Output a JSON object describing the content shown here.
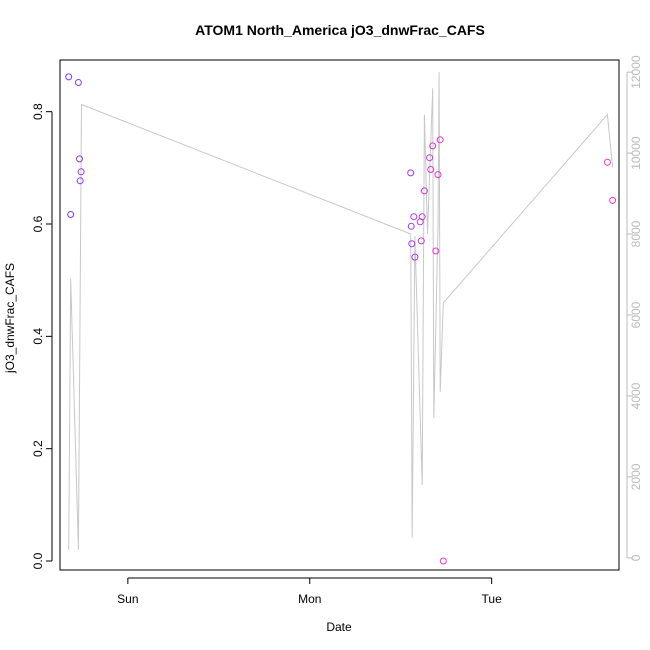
{
  "chart_data": {
    "type": "scatter",
    "title": "ATOM1 North_America jO3_dnwFrac_CAFS",
    "xlabel": "Date",
    "ylabel": "jO3_dnwFrac_CAFS",
    "x_ticks": [
      {
        "x": 0.0,
        "label": "Sun"
      },
      {
        "x": 1.0,
        "label": "Mon"
      },
      {
        "x": 2.0,
        "label": "Tue"
      }
    ],
    "x_unit": "days after Sun 00:00",
    "xlim": [
      -0.373,
      2.7
    ],
    "ylim": [
      -0.016,
      0.892
    ],
    "y_ticks": [
      0.0,
      0.2,
      0.4,
      0.6,
      0.8
    ],
    "y2lim": [
      -300,
      12300
    ],
    "y2_ticks": [
      0,
      2000,
      4000,
      6000,
      8000,
      10000,
      12000
    ],
    "grid": false,
    "series": [
      {
        "kind": "points",
        "color_start": "#7b3ff2",
        "color_end": "#ff33cc",
        "points": [
          {
            "x": -0.325,
            "y": 0.862
          },
          {
            "x": -0.314,
            "y": 0.617
          },
          {
            "x": -0.272,
            "y": 0.852
          },
          {
            "x": -0.266,
            "y": 0.716
          },
          {
            "x": -0.262,
            "y": 0.677
          },
          {
            "x": -0.257,
            "y": 0.693
          },
          {
            "x": 1.555,
            "y": 0.691
          },
          {
            "x": 1.558,
            "y": 0.596
          },
          {
            "x": 1.561,
            "y": 0.565
          },
          {
            "x": 1.572,
            "y": 0.613
          },
          {
            "x": 1.578,
            "y": 0.541
          },
          {
            "x": 1.607,
            "y": 0.604
          },
          {
            "x": 1.613,
            "y": 0.57
          },
          {
            "x": 1.618,
            "y": 0.613
          },
          {
            "x": 1.63,
            "y": 0.659
          },
          {
            "x": 1.659,
            "y": 0.718
          },
          {
            "x": 1.665,
            "y": 0.697
          },
          {
            "x": 1.676,
            "y": 0.739
          },
          {
            "x": 1.693,
            "y": 0.552
          },
          {
            "x": 1.705,
            "y": 0.688
          },
          {
            "x": 1.717,
            "y": 0.75
          },
          {
            "x": 1.734,
            "y": 0.0
          },
          {
            "x": 2.636,
            "y": 0.71
          },
          {
            "x": 2.665,
            "y": 0.642
          }
        ]
      },
      {
        "kind": "line",
        "axis": "right",
        "color": "#c8c8c8",
        "points": [
          {
            "x": -0.325,
            "y": 200
          },
          {
            "x": -0.314,
            "y": 6900
          },
          {
            "x": -0.272,
            "y": 200
          },
          {
            "x": -0.255,
            "y": 11200
          },
          {
            "x": 1.555,
            "y": 8000
          },
          {
            "x": 1.563,
            "y": 500
          },
          {
            "x": 1.578,
            "y": 7950
          },
          {
            "x": 1.618,
            "y": 1800
          },
          {
            "x": 1.63,
            "y": 10950
          },
          {
            "x": 1.647,
            "y": 8000
          },
          {
            "x": 1.676,
            "y": 11600
          },
          {
            "x": 1.682,
            "y": 3450
          },
          {
            "x": 1.705,
            "y": 8200
          },
          {
            "x": 1.711,
            "y": 12000
          },
          {
            "x": 1.717,
            "y": 4100
          },
          {
            "x": 1.734,
            "y": 6300
          },
          {
            "x": 2.636,
            "y": 10950
          },
          {
            "x": 2.665,
            "y": 9650
          }
        ]
      }
    ]
  }
}
